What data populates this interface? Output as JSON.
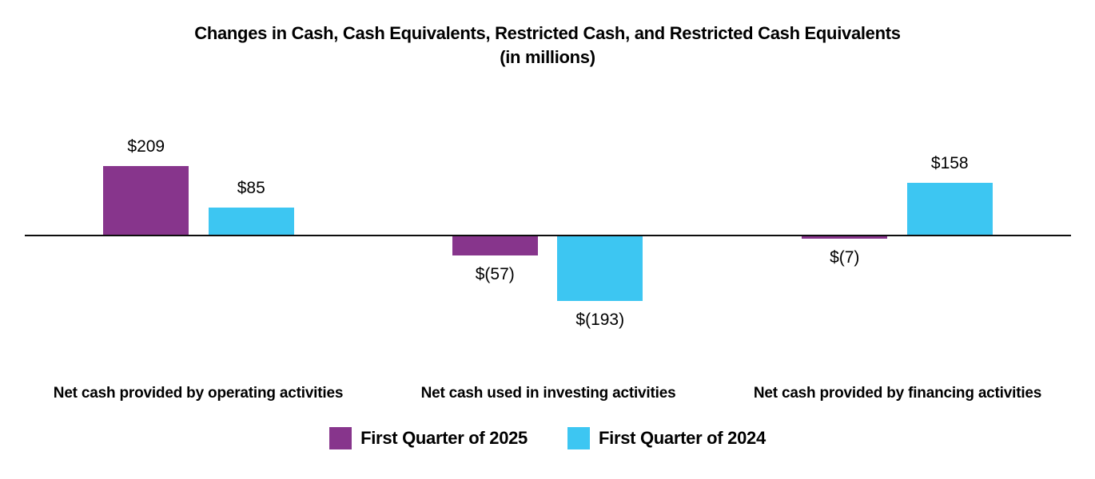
{
  "chart_data": {
    "type": "bar",
    "title": "Changes in Cash, Cash Equivalents, Restricted Cash, and Restricted Cash Equivalents",
    "subtitle": "(in millions)",
    "categories": [
      "Net cash provided by operating activities",
      "Net cash used in investing activities",
      "Net cash provided by financing activities"
    ],
    "series": [
      {
        "name": "First Quarter of 2025",
        "color": "#87358C",
        "values": [
          209,
          -57,
          -7
        ],
        "labels": [
          "$209",
          "$(57)",
          "$(7)"
        ]
      },
      {
        "name": "First Quarter of 2024",
        "color": "#3DC6F2",
        "values": [
          85,
          -193,
          158
        ],
        "labels": [
          "$85",
          "$(193)",
          "$158"
        ]
      }
    ],
    "xlabel": "",
    "ylabel": "",
    "ylim": [
      -250,
      250
    ],
    "grid": false,
    "legend_position": "bottom",
    "axis_color": "#0d0d0d"
  }
}
